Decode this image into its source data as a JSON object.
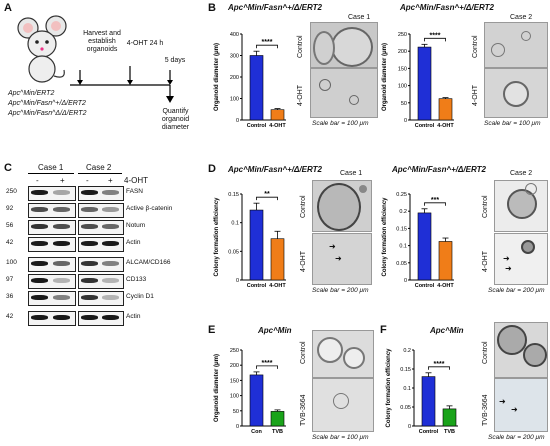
{
  "panels": {
    "A": {
      "label": "A",
      "harvest": "Harvest and establish organoids",
      "treat": "4-OHT 24 h",
      "days": "5 days",
      "quantify": "Quantify organoid diameter",
      "geno1": "Apc^Min/ERT2",
      "geno2": "Apc^Min/Fasn^+/Δ/ERT2",
      "geno3": "Apc^Min/Fasn^Δ/Δ/ERT2"
    },
    "B": {
      "label": "B",
      "title1": "Apc^Min/Fasn^+/Δ/ERT2",
      "title2": "Apc^Min/Fasn^+/Δ/ERT2",
      "case1": "Case 1",
      "case2": "Case 2",
      "ctrl": "Control",
      "oht": "4-OHT",
      "scalebar": "Scale bar = 100 μm"
    },
    "C": {
      "label": "C",
      "case1": "Case 1",
      "case2": "Case 2",
      "oht": "4-OHT",
      "minus": "-",
      "plus": "+",
      "proteins": [
        "FASN",
        "Active β-catenin",
        "Notum",
        "Actin",
        "ALCAM/CD166",
        "CD133",
        "Cyclin D1",
        "Actin"
      ],
      "kda": [
        "250",
        "92",
        "56",
        "42",
        "100",
        "97",
        "36",
        "42"
      ]
    },
    "D": {
      "label": "D",
      "title1": "Apc^Min/Fasn^+/Δ/ERT2",
      "title2": "Apc^Min/Fasn^+/Δ/ERT2",
      "case1": "Case 1",
      "case2": "Case 2",
      "ctrl": "Control",
      "oht": "4-OHT",
      "scalebar": "Scale bar = 200 μm"
    },
    "E": {
      "label": "E",
      "title": "Apc^Min",
      "ctrl": "Control",
      "tvb": "TVB-3664",
      "scalebar": "Scale bar = 100 μm"
    },
    "F": {
      "label": "F",
      "title": "Apc^Min",
      "ctrl": "Control",
      "tvb": "TVB-3664",
      "scalebar": "Scale bar = 200 μm"
    }
  },
  "chart_data": [
    {
      "id": "B1",
      "type": "bar",
      "categories": [
        "Control",
        "4-OHT"
      ],
      "values": [
        300,
        48
      ],
      "errors": [
        20,
        5
      ],
      "ylabel": "Organoid diameter (μm)",
      "ylim": [
        0,
        400
      ],
      "yticks": [
        0,
        100,
        200,
        300,
        400
      ],
      "significance": "****",
      "colors": [
        "#1f2fd6",
        "#f07d18"
      ]
    },
    {
      "id": "B2",
      "type": "bar",
      "categories": [
        "Control",
        "4-OHT"
      ],
      "values": [
        212,
        62
      ],
      "errors": [
        8,
        3
      ],
      "ylabel": "Organoid diameter (μm)",
      "ylim": [
        0,
        250
      ],
      "yticks": [
        0,
        50,
        100,
        150,
        200,
        250
      ],
      "significance": "****",
      "colors": [
        "#1f2fd6",
        "#f07d18"
      ]
    },
    {
      "id": "D1",
      "type": "bar",
      "categories": [
        "Control",
        "4-OHT"
      ],
      "values": [
        0.122,
        0.072
      ],
      "errors": [
        0.012,
        0.013
      ],
      "ylabel": "Colony formation efficiency",
      "ylim": [
        0,
        0.15
      ],
      "yticks": [
        0,
        0.05,
        0.1,
        0.15
      ],
      "significance": "**",
      "colors": [
        "#1f2fd6",
        "#f07d18"
      ]
    },
    {
      "id": "D2",
      "type": "bar",
      "categories": [
        "Control",
        "4-OHT"
      ],
      "values": [
        0.195,
        0.112
      ],
      "errors": [
        0.012,
        0.01
      ],
      "ylabel": "Colony formation efficiency",
      "ylim": [
        0,
        0.25
      ],
      "yticks": [
        0,
        0.05,
        0.1,
        0.15,
        0.2,
        0.25
      ],
      "significance": "***",
      "colors": [
        "#1f2fd6",
        "#f07d18"
      ]
    },
    {
      "id": "E",
      "type": "bar",
      "categories": [
        "Con",
        "TVB"
      ],
      "values": [
        168,
        48
      ],
      "errors": [
        10,
        5
      ],
      "ylabel": "Organoid diameter (μm)",
      "ylim": [
        0,
        250
      ],
      "yticks": [
        0,
        50,
        100,
        150,
        200,
        250
      ],
      "significance": "****",
      "colors": [
        "#1f2fd6",
        "#1aa31a"
      ]
    },
    {
      "id": "F",
      "type": "bar",
      "categories": [
        "Control",
        "TVB"
      ],
      "values": [
        0.13,
        0.045
      ],
      "errors": [
        0.01,
        0.008
      ],
      "ylabel": "Colony formation efficiency",
      "ylim": [
        0,
        0.2
      ],
      "yticks": [
        0,
        0.05,
        0.1,
        0.15,
        0.2
      ],
      "significance": "****",
      "colors": [
        "#1f2fd6",
        "#1aa31a"
      ]
    }
  ]
}
